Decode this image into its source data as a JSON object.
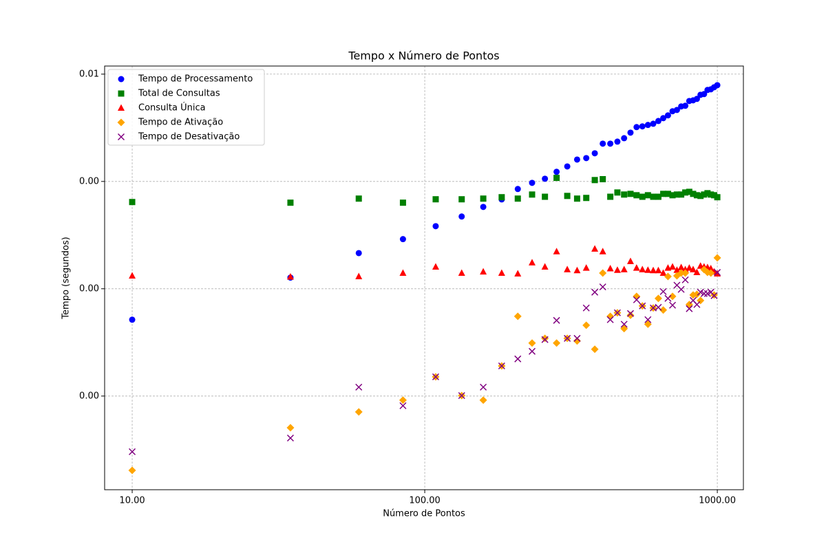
{
  "chart_data": {
    "type": "scatter",
    "title": "Tempo x Número de Pontos",
    "x_label": "Número de Pontos",
    "y_label": "Tempo (segundos)",
    "x_scale": "log",
    "y_scale": "log",
    "grid": true,
    "legend_position": "upper-left",
    "xlim": [
      8.05,
      1228
    ],
    "ylim": [
      1.34e-06,
      0.0119
    ],
    "xticks": [
      {
        "value": 10,
        "label": "10.00"
      },
      {
        "value": 100,
        "label": "100.00"
      },
      {
        "value": 1000,
        "label": "1000.00"
      }
    ],
    "yticks": [
      {
        "value": 1e-05,
        "label": "0.00"
      },
      {
        "value": 0.0001,
        "label": "0.00"
      },
      {
        "value": 0.001,
        "label": "0.00"
      },
      {
        "value": 0.01,
        "label": "0.01"
      }
    ],
    "x": [
      10,
      34.75,
      59.5,
      84.25,
      109,
      133.75,
      158.5,
      183.25,
      208,
      232.75,
      257.5,
      282.25,
      307,
      331.75,
      356.5,
      381.25,
      406,
      430.75,
      455.5,
      480.25,
      505,
      529.75,
      554.5,
      579.25,
      604,
      628.75,
      653.5,
      678.25,
      703,
      727.75,
      752.5,
      777.25,
      802,
      826.75,
      851.5,
      876.25,
      901,
      925.75,
      950.5,
      975.25,
      1000
    ],
    "series": [
      {
        "name": "Tempo de Processamento",
        "color": "#0000ff",
        "marker": "o",
        "values": [
          5.15e-05,
          0.000127,
          0.000215,
          0.00029,
          0.000383,
          0.000471,
          0.000579,
          0.00068,
          0.00085,
          0.00097,
          0.00106,
          0.00123,
          0.00138,
          0.0016,
          0.00165,
          0.00183,
          0.00225,
          0.00225,
          0.00235,
          0.00253,
          0.00285,
          0.00321,
          0.00326,
          0.00336,
          0.00345,
          0.00366,
          0.00389,
          0.00413,
          0.00451,
          0.00464,
          0.005,
          0.00507,
          0.00562,
          0.0057,
          0.00588,
          0.00642,
          0.00652,
          0.00712,
          0.00722,
          0.00755,
          0.00789
        ]
      },
      {
        "name": "Total de Consultas",
        "color": "#008000",
        "marker": "s",
        "values": [
          0.000643,
          0.000634,
          0.000692,
          0.000634,
          0.000682,
          0.000682,
          0.000692,
          0.000713,
          0.000692,
          0.000755,
          0.00072,
          0.00108,
          0.000733,
          0.000692,
          0.000702,
          0.00103,
          0.00105,
          0.00072,
          0.000789,
          0.000755,
          0.000766,
          0.000744,
          0.00072,
          0.000744,
          0.00072,
          0.00072,
          0.000766,
          0.000766,
          0.000744,
          0.000755,
          0.000755,
          0.000789,
          0.0008,
          0.000766,
          0.000744,
          0.000733,
          0.000755,
          0.000777,
          0.000755,
          0.000744,
          0.000713
        ]
      },
      {
        "name": "Consulta Única",
        "color": "#ff0000",
        "marker": "^",
        "values": [
          0.000132,
          0.000129,
          0.00013,
          0.00014,
          0.00016,
          0.00014,
          0.000144,
          0.00014,
          0.000138,
          0.000175,
          0.00016,
          0.000222,
          0.000151,
          0.000148,
          0.000156,
          0.000235,
          0.000222,
          0.000154,
          0.000149,
          0.000151,
          0.00018,
          0.000156,
          0.000151,
          0.000149,
          0.000148,
          0.000148,
          0.00014,
          0.000156,
          0.00016,
          0.000149,
          0.000158,
          0.000151,
          0.000156,
          0.000151,
          0.000142,
          0.000163,
          0.00016,
          0.000158,
          0.000154,
          0.000144,
          0.000138
        ]
      },
      {
        "name": "Tempo de Ativação",
        "color": "#ffa500",
        "marker": "D",
        "values": [
          2.03e-06,
          5.07e-06,
          7.12e-06,
          9.16e-06,
          1.51e-05,
          1.01e-05,
          9.16e-06,
          1.91e-05,
          5.54e-05,
          3.12e-05,
          3.45e-05,
          3.12e-05,
          3.45e-05,
          3.26e-05,
          4.57e-05,
          2.73e-05,
          0.00014,
          5.54e-05,
          5.97e-05,
          4.25e-05,
          5.66e-05,
          8.5e-05,
          6.92e-05,
          4.67e-05,
          6.62e-05,
          8.13e-05,
          6.33e-05,
          0.00013,
          8.5e-05,
          0.000132,
          0.00014,
          0.00014,
          7.13e-05,
          8.75e-05,
          8.88e-05,
          7.78e-05,
          0.000151,
          0.000142,
          0.00014,
          8.75e-05,
          0.000194
        ]
      },
      {
        "name": "Tempo de Desativação",
        "color": "#800080",
        "marker": "x",
        "values": [
          3.03e-06,
          4.06e-06,
          1.21e-05,
          8.13e-06,
          1.51e-05,
          1.01e-05,
          1.21e-05,
          1.91e-05,
          2.22e-05,
          2.61e-05,
          3.36e-05,
          5.07e-05,
          3.45e-05,
          3.45e-05,
          6.62e-05,
          9.29e-05,
          0.000104,
          5.15e-05,
          5.97e-05,
          4.67e-05,
          5.88e-05,
          7.89e-05,
          6.92e-05,
          5.15e-05,
          6.62e-05,
          6.71e-05,
          9.42e-05,
          8.13e-05,
          7.02e-05,
          0.000108,
          9.86e-05,
          0.000121,
          6.52e-05,
          7.78e-05,
          7.13e-05,
          9.29e-05,
          9.02e-05,
          9.02e-05,
          9.29e-05,
          8.63e-05,
          0.000142
        ]
      }
    ]
  }
}
